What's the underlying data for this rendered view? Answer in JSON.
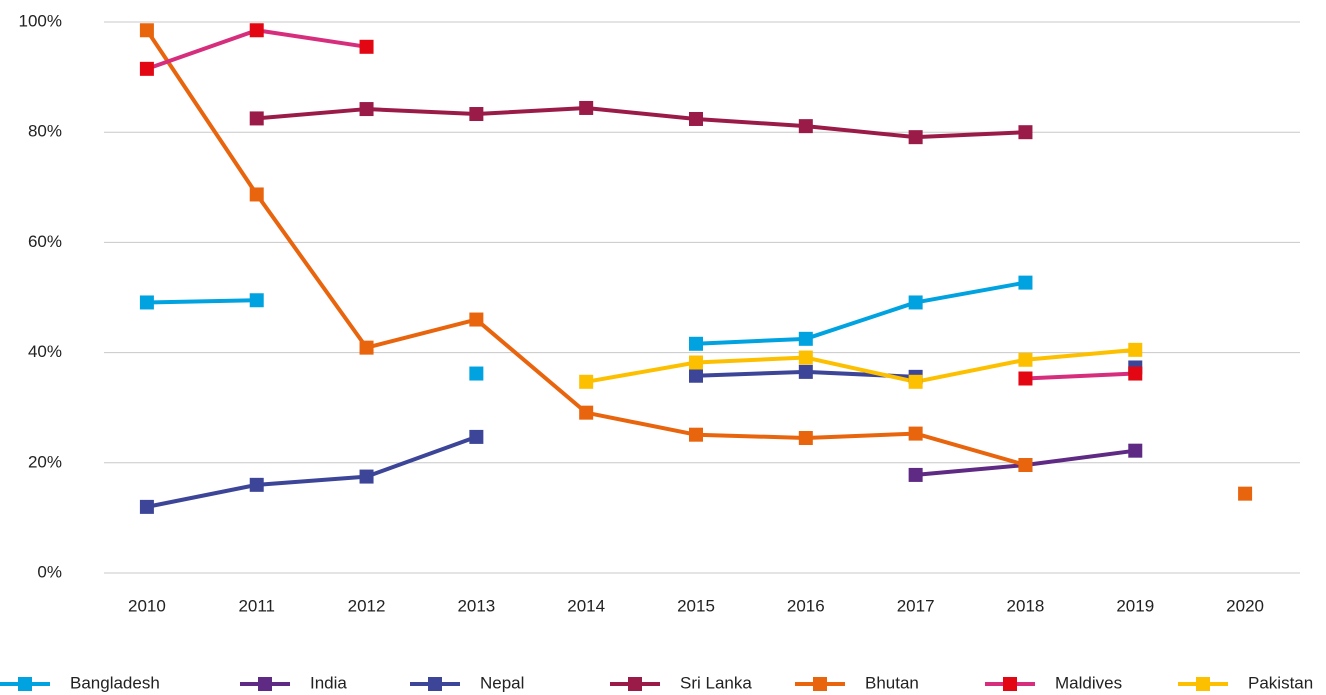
{
  "chart_data": {
    "type": "line",
    "categories": [
      "2010",
      "2011",
      "2012",
      "2013",
      "2014",
      "2015",
      "2016",
      "2017",
      "2018",
      "2019",
      "2020"
    ],
    "ylim": [
      0,
      100
    ],
    "yticks": [
      {
        "value": 0,
        "label": "0%"
      },
      {
        "value": 20,
        "label": "20%"
      },
      {
        "value": 40,
        "label": "40%"
      },
      {
        "value": 60,
        "label": "60%"
      },
      {
        "value": 80,
        "label": "80%"
      },
      {
        "value": 100,
        "label": "100%"
      }
    ],
    "grid": true,
    "legend": "bottom",
    "series": [
      {
        "name": "Bangladesh",
        "color": "#00a3e0",
        "values": [
          49.1,
          49.5,
          null,
          36.2,
          null,
          41.6,
          42.5,
          49.1,
          52.7,
          null,
          null
        ]
      },
      {
        "name": "India",
        "color": "#5e2a84",
        "values": [
          null,
          null,
          null,
          null,
          null,
          null,
          null,
          17.8,
          19.6,
          22.2,
          null
        ]
      },
      {
        "name": "Nepal",
        "color": "#3c4597",
        "values": [
          12.0,
          16.0,
          17.5,
          24.7,
          null,
          35.8,
          36.5,
          35.6,
          null,
          37.3,
          null
        ]
      },
      {
        "name": "Sri Lanka",
        "color": "#9b1b48",
        "values": [
          null,
          82.5,
          84.2,
          83.3,
          84.4,
          82.4,
          81.1,
          79.1,
          80.0,
          null,
          null
        ]
      },
      {
        "name": "Bhutan",
        "color": "#e8650e",
        "values": [
          98.5,
          68.7,
          40.9,
          46.0,
          29.1,
          25.1,
          24.5,
          25.3,
          19.6,
          null,
          14.4
        ]
      },
      {
        "name": "Maldives",
        "color": "#d62e7d",
        "marker_color": "#e30613",
        "values": [
          91.5,
          98.5,
          95.5,
          null,
          null,
          null,
          null,
          null,
          35.3,
          36.2,
          null
        ]
      },
      {
        "name": "Pakistan",
        "color": "#fcc000",
        "values": [
          null,
          null,
          null,
          null,
          34.7,
          38.2,
          39.1,
          34.7,
          38.7,
          40.5,
          null
        ]
      }
    ]
  }
}
